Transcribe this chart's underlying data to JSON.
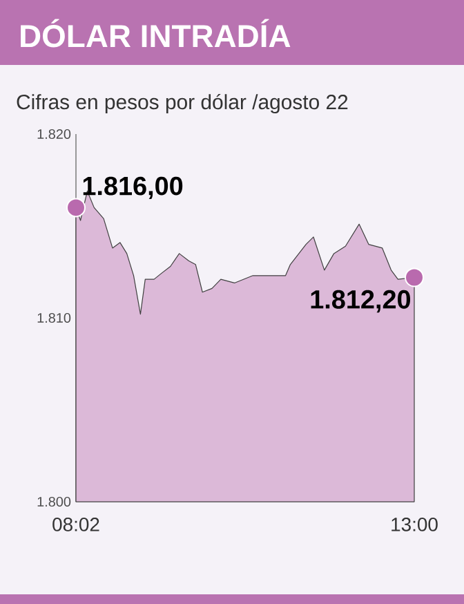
{
  "chart_data": {
    "type": "area",
    "title": "DÓLAR INTRADÍA",
    "subtitle": "Cifras en pesos por dólar /agosto 22",
    "x": [
      8.0333,
      8.1,
      8.2,
      8.3,
      8.44,
      8.57,
      8.68,
      8.78,
      8.88,
      8.98,
      9.05,
      9.18,
      9.28,
      9.42,
      9.55,
      9.69,
      9.79,
      9.89,
      10.03,
      10.16,
      10.36,
      10.63,
      10.91,
      11.11,
      11.18,
      11.41,
      11.52,
      11.68,
      11.82,
      11.99,
      12.19,
      12.33,
      12.53,
      12.66,
      12.76,
      13.0
    ],
    "series": [
      {
        "color": "#dcb9d8",
        "values": [
          1816.0,
          1815.3,
          1816.9,
          1816.0,
          1815.4,
          1813.8,
          1814.1,
          1813.5,
          1812.3,
          1810.2,
          1812.1,
          1812.1,
          1812.4,
          1812.8,
          1813.5,
          1813.1,
          1812.9,
          1811.4,
          1811.6,
          1812.1,
          1811.9,
          1812.3,
          1812.3,
          1812.3,
          1812.9,
          1814.0,
          1814.4,
          1812.6,
          1813.5,
          1813.9,
          1815.1,
          1814.0,
          1813.8,
          1812.6,
          1812.1,
          1812.2
        ]
      }
    ],
    "xlim": [
      8.0333,
      13.0
    ],
    "ylim": [
      1800,
      1820
    ],
    "xticks": [
      {
        "value": 8.0333,
        "label": "08:02"
      },
      {
        "value": 13.0,
        "label": "13:00"
      }
    ],
    "yticks": [
      {
        "value": 1800,
        "label": "1.800"
      },
      {
        "value": 1810,
        "label": "1.810"
      },
      {
        "value": 1820,
        "label": "1.820"
      }
    ],
    "annotations": [
      {
        "text": "1.816,00",
        "x": 8.0333,
        "y": 1816.0
      },
      {
        "text": "1.812,20",
        "x": 13.0,
        "y": 1812.2
      }
    ]
  }
}
